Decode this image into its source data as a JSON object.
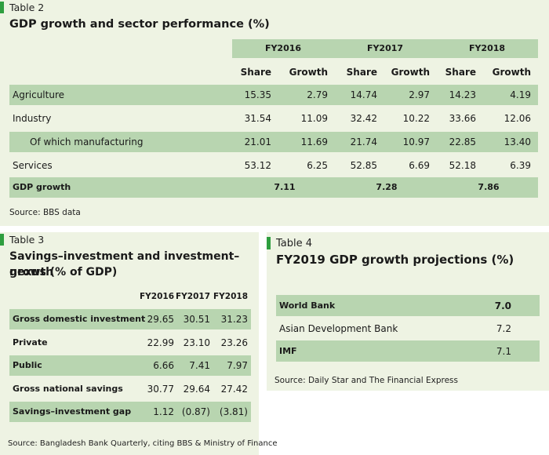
{
  "table2": {
    "label": "Table 2",
    "title": "GDP growth and sector performance (%)",
    "years": [
      "FY2016",
      "FY2017",
      "FY2018"
    ],
    "subheads": [
      "Share",
      "Growth",
      "Share",
      "Growth",
      "Share",
      "Growth"
    ],
    "rows": [
      {
        "label": "Agriculture",
        "values": [
          "15.35",
          "2.79",
          "14.74",
          "2.97",
          "14.23",
          "4.19"
        ]
      },
      {
        "label": "Industry",
        "values": [
          "31.54",
          "11.09",
          "32.42",
          "10.22",
          "33.66",
          "12.06"
        ]
      },
      {
        "label": "Of which manufacturing",
        "values": [
          "21.01",
          "11.69",
          "21.74",
          "10.97",
          "22.85",
          "13.40"
        ]
      },
      {
        "label": "Services",
        "values": [
          "53.12",
          "6.25",
          "52.85",
          "6.69",
          "52.18",
          "6.39"
        ]
      }
    ],
    "gdp_row": {
      "label": "GDP growth",
      "values": [
        "7.11",
        "7.28",
        "7.86"
      ]
    },
    "source": "Source: BBS data"
  },
  "table3": {
    "label": "Table 3",
    "title_line1": "Savings–investment and investment–growth",
    "title_line2": "nexus (% of GDP)",
    "years": [
      "FY2016",
      "FY2017",
      "FY2018"
    ],
    "rows": [
      {
        "label": "Gross domestic investment",
        "values": [
          "29.65",
          "30.51",
          "31.23"
        ]
      },
      {
        "label": "Private",
        "values": [
          "22.99",
          "23.10",
          "23.26"
        ]
      },
      {
        "label": "Public",
        "values": [
          "6.66",
          "7.41",
          "7.97"
        ]
      },
      {
        "label": "Gross national savings",
        "values": [
          "30.77",
          "29.64",
          "27.42"
        ]
      },
      {
        "label": "Savings–investment gap",
        "values": [
          "1.12",
          "(0.87)",
          "(3.81)"
        ]
      }
    ],
    "source": "Source: Bangladesh Bank Quarterly, citing BBS & Ministry of Finance"
  },
  "table4": {
    "label": "Table 4",
    "title": "FY2019 GDP growth projections (%)",
    "rows": [
      {
        "label": "World Bank",
        "value": "7.0"
      },
      {
        "label": "Asian Development Bank",
        "value": "7.2"
      },
      {
        "label": "IMF",
        "value": "7.1"
      }
    ],
    "source": "Source: Daily Star and The Financial Express"
  },
  "colors": {
    "accent": "#2e9e3f",
    "panel": "#eef3e3",
    "band": "#b8d5b0"
  }
}
